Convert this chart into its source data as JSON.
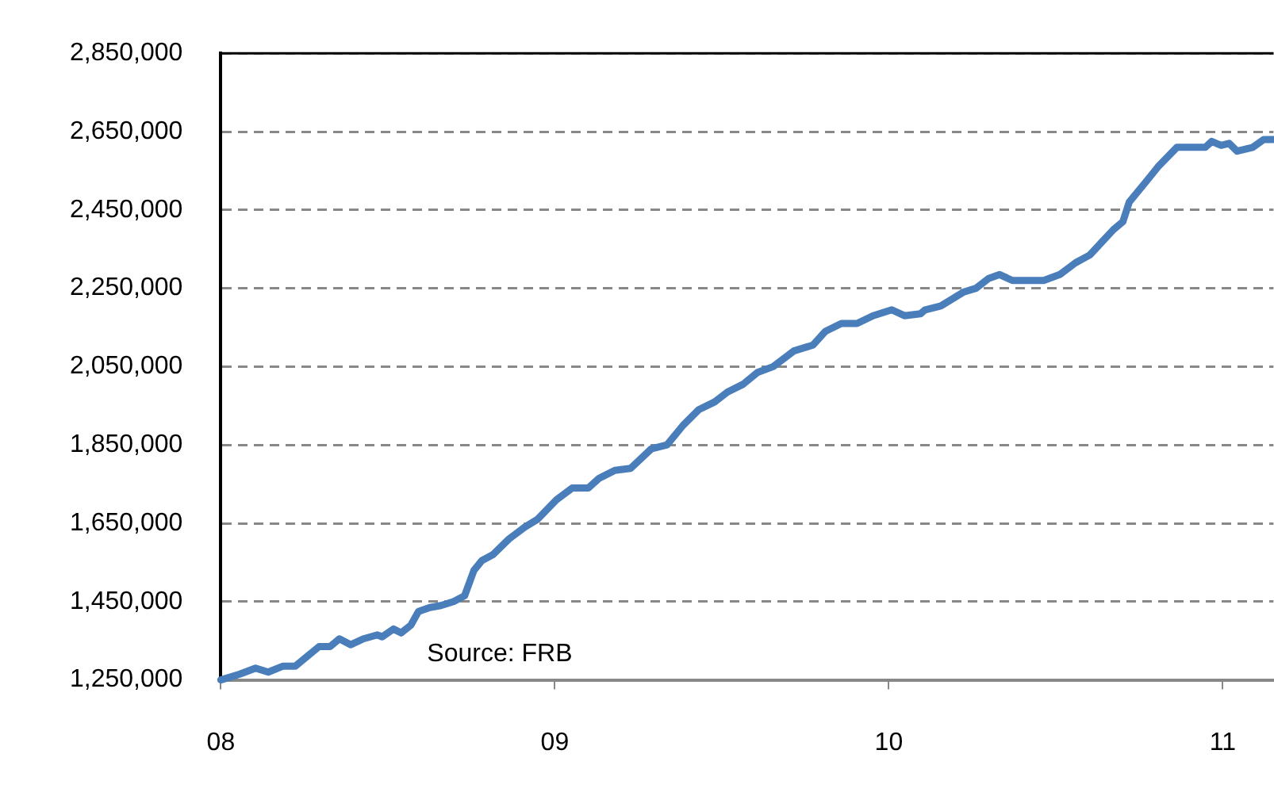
{
  "chart_data": {
    "type": "line",
    "x": [
      2008.0,
      2008.057,
      2008.104,
      2008.142,
      2008.185,
      2008.223,
      2008.294,
      2008.327,
      2008.355,
      2008.389,
      2008.427,
      2008.469,
      2008.483,
      2008.517,
      2008.54,
      2008.569,
      2008.592,
      2008.626,
      2008.659,
      2008.697,
      2008.73,
      2008.758,
      2008.782,
      2008.815,
      2008.863,
      2008.91,
      2008.948,
      2009.005,
      2009.052,
      2009.1,
      2009.133,
      2009.18,
      2009.227,
      2009.289,
      2009.336,
      2009.384,
      2009.431,
      2009.479,
      2009.517,
      2009.564,
      2009.607,
      2009.654,
      2009.716,
      2009.773,
      2009.81,
      2009.858,
      2009.905,
      2009.953,
      2010.009,
      2010.047,
      2010.095,
      2010.109,
      2010.156,
      2010.223,
      2010.261,
      2010.299,
      2010.332,
      2010.37,
      2010.417,
      2010.464,
      2010.512,
      2010.559,
      2010.602,
      2010.64,
      2010.673,
      2010.701,
      2010.72,
      2010.773,
      2010.806,
      2010.863,
      2010.9,
      2010.948,
      2010.967,
      2010.995,
      2011.019,
      2011.043,
      2011.09,
      2011.123,
      2011.152
    ],
    "series": [
      {
        "color": "#4a7ebb",
        "values": [
          1250000,
          1265000,
          1280000,
          1270000,
          1285000,
          1285000,
          1335000,
          1335000,
          1355000,
          1340000,
          1355000,
          1365000,
          1360000,
          1380000,
          1370000,
          1390000,
          1425000,
          1435000,
          1440000,
          1450000,
          1465000,
          1530000,
          1555000,
          1570000,
          1610000,
          1640000,
          1660000,
          1710000,
          1740000,
          1740000,
          1765000,
          1785000,
          1790000,
          1840000,
          1850000,
          1900000,
          1940000,
          1960000,
          1985000,
          2005000,
          2035000,
          2050000,
          2090000,
          2105000,
          2140000,
          2160000,
          2160000,
          2180000,
          2195000,
          2180000,
          2185000,
          2195000,
          2205000,
          2240000,
          2250000,
          2275000,
          2285000,
          2270000,
          2270000,
          2270000,
          2285000,
          2315000,
          2335000,
          2370000,
          2400000,
          2420000,
          2470000,
          2525000,
          2560000,
          2610000,
          2610000,
          2610000,
          2625000,
          2615000,
          2620000,
          2600000,
          2610000,
          2630000,
          2630000
        ]
      }
    ],
    "xlim": [
      2008,
      2011.152
    ],
    "xticks": [
      {
        "value": 2008,
        "label": "08"
      },
      {
        "value": 2009,
        "label": "09"
      },
      {
        "value": 2010,
        "label": "10"
      },
      {
        "value": 2011,
        "label": "11"
      }
    ],
    "ylim": [
      1250000,
      2850000
    ],
    "yticks": [
      {
        "value": 1250000,
        "label": "1,250,000"
      },
      {
        "value": 1450000,
        "label": "1,450,000"
      },
      {
        "value": 1650000,
        "label": "1,650,000"
      },
      {
        "value": 1850000,
        "label": "1,850,000"
      },
      {
        "value": 2050000,
        "label": "2,050,000"
      },
      {
        "value": 2250000,
        "label": "2,250,000"
      },
      {
        "value": 2450000,
        "label": "2,450,000"
      },
      {
        "value": 2650000,
        "label": "2,650,000"
      },
      {
        "value": 2850000,
        "label": "2,850,000"
      }
    ],
    "grid": "y",
    "legend": false,
    "marker": "none",
    "line_style": "solid",
    "annotations": [
      "Source: FRB"
    ]
  }
}
